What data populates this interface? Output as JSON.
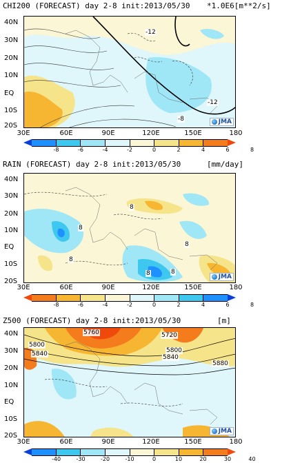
{
  "lat_labels": [
    "40N",
    "30N",
    "20N",
    "10N",
    "EQ",
    "10S",
    "20S"
  ],
  "lon_labels": [
    "30E",
    "60E",
    "90E",
    "120E",
    "150E",
    "180"
  ],
  "logo_text": "JMA",
  "panels": [
    {
      "title": "CHI200 (FORECAST) day 2-8 init:2013/05/30",
      "unit": "*1.0E6[m**2/s]",
      "ticks": [
        "-8",
        "-6",
        "-4",
        "-2",
        "0",
        "2",
        "4",
        "6",
        "8"
      ],
      "colors": [
        "#0a3fd8",
        "#1e90ff",
        "#3ec8f0",
        "#9fe6f6",
        "#dff6fb",
        "#fbf6d5",
        "#f5e48a",
        "#f7b632",
        "#f57c1c",
        "#f0490c"
      ],
      "contour_labels": [
        "-12",
        "-12",
        "-8"
      ]
    },
    {
      "title": "RAIN (FORECAST) day 2-8 init:2013/05/30",
      "unit": "[mm/day]",
      "ticks": [
        "-8",
        "-6",
        "-4",
        "-2",
        "0",
        "2",
        "4",
        "6",
        "8"
      ],
      "colors": [
        "#f0490c",
        "#f57c1c",
        "#f7b632",
        "#f5e48a",
        "#fbf6d5",
        "#dff6fb",
        "#9fe6f6",
        "#3ec8f0",
        "#1e90ff",
        "#0a3fd8"
      ],
      "contour_labels": [
        "8",
        "8",
        "8",
        "8",
        "8",
        "8"
      ]
    },
    {
      "title": "Z500 (FORECAST) day 2-8 init:2013/05/30",
      "unit": "[m]",
      "ticks": [
        "-40",
        "-30",
        "-20",
        "-10",
        "0",
        "10",
        "20",
        "30",
        "40"
      ],
      "colors": [
        "#0a3fd8",
        "#1e90ff",
        "#3ec8f0",
        "#9fe6f6",
        "#dff6fb",
        "#fbf6d5",
        "#f5e48a",
        "#f7b632",
        "#f57c1c",
        "#f0490c"
      ],
      "contour_labels": [
        "5760",
        "5720",
        "5800",
        "5840",
        "5800",
        "5840",
        "5880"
      ]
    }
  ]
}
